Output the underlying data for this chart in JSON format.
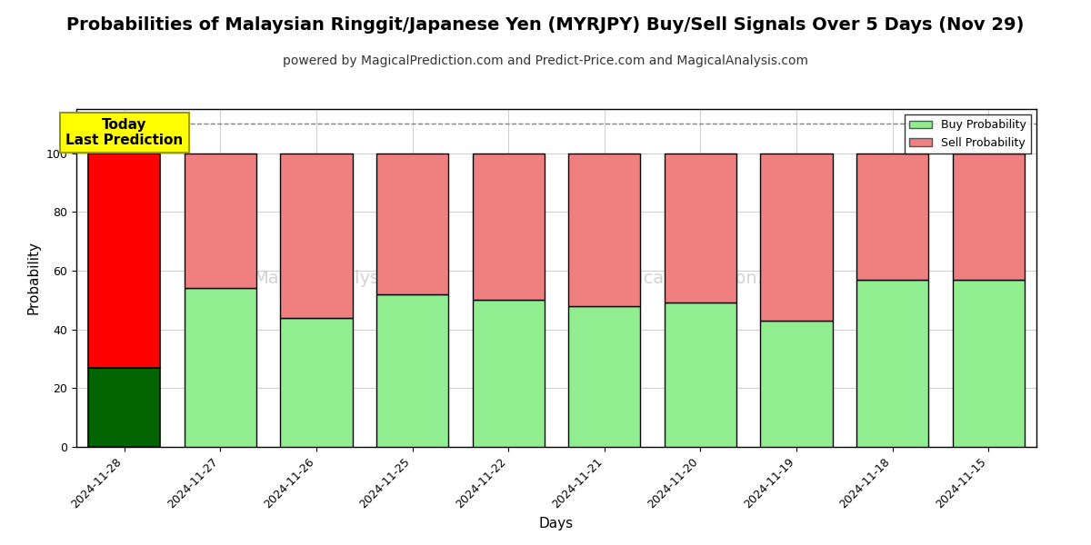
{
  "title": "Probabilities of Malaysian Ringgit/Japanese Yen (MYRJPY) Buy/Sell Signals Over 5 Days (Nov 29)",
  "subtitle": "powered by MagicalPrediction.com and Predict-Price.com and MagicalAnalysis.com",
  "xlabel": "Days",
  "ylabel": "Probability",
  "dates": [
    "2024-11-28",
    "2024-11-27",
    "2024-11-26",
    "2024-11-25",
    "2024-11-22",
    "2024-11-21",
    "2024-11-20",
    "2024-11-19",
    "2024-11-18",
    "2024-11-15"
  ],
  "buy_values": [
    27,
    54,
    44,
    52,
    50,
    48,
    49,
    43,
    57,
    57
  ],
  "sell_values": [
    73,
    46,
    56,
    48,
    50,
    52,
    51,
    57,
    43,
    43
  ],
  "today_buy_color": "#006400",
  "today_sell_color": "#ff0000",
  "buy_color": "#90EE90",
  "sell_color": "#F08080",
  "bar_edge_color": "#000000",
  "today_annotation_bg": "#ffff00",
  "today_annotation_text": "Today\nLast Prediction",
  "legend_buy_label": "Buy Probability",
  "legend_sell_label": "Sell Probability",
  "ylim": [
    0,
    115
  ],
  "dashed_line_y": 110,
  "watermark_color": "#c8c8c8",
  "grid_color": "#aaaaaa",
  "title_fontsize": 14,
  "subtitle_fontsize": 10
}
